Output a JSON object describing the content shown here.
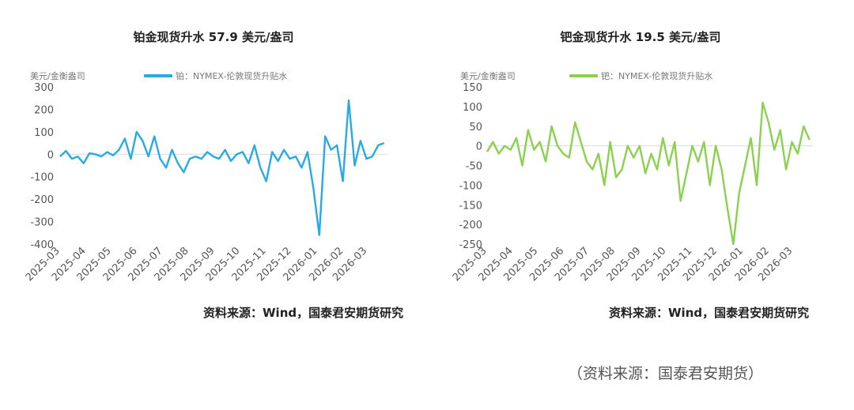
{
  "footer": "（资料来源：国泰君安期货）",
  "chart_data": [
    {
      "type": "line",
      "title": "铂金现货升水 57.9 美元/盎司",
      "ylabel": "美元/金衡盎司",
      "source": "资料来源：Wind，国泰君安期货研究",
      "ylim": [
        -400,
        300
      ],
      "yticks": [
        300,
        200,
        100,
        0,
        -100,
        -200,
        -300,
        -400
      ],
      "xticks": [
        "2025-03",
        "2025-04",
        "2025-05",
        "2025-06",
        "2025-07",
        "2025-08",
        "2025-09",
        "2025-10",
        "2025-11",
        "2025-12",
        "2026-01",
        "2026-02",
        "2026-03"
      ],
      "color": "#29abe2",
      "series": [
        {
          "name": "铂：NYMEX-伦敦现货升贴水",
          "x": [
            "2025-03-01",
            "2025-03-08",
            "2025-03-15",
            "2025-03-22",
            "2025-03-29",
            "2025-04-05",
            "2025-04-12",
            "2025-04-19",
            "2025-04-26",
            "2025-05-03",
            "2025-05-10",
            "2025-05-17",
            "2025-05-24",
            "2025-05-31",
            "2025-06-07",
            "2025-06-14",
            "2025-06-21",
            "2025-06-28",
            "2025-07-05",
            "2025-07-12",
            "2025-07-19",
            "2025-07-26",
            "2025-08-02",
            "2025-08-09",
            "2025-08-16",
            "2025-08-23",
            "2025-08-30",
            "2025-09-06",
            "2025-09-13",
            "2025-09-20",
            "2025-09-27",
            "2025-10-04",
            "2025-10-11",
            "2025-10-18",
            "2025-10-25",
            "2025-11-01",
            "2025-11-08",
            "2025-11-15",
            "2025-11-22",
            "2025-11-29",
            "2025-12-06",
            "2025-12-13",
            "2025-12-20",
            "2025-12-27",
            "2026-01-03",
            "2026-01-10",
            "2026-01-17",
            "2026-01-24",
            "2026-01-31",
            "2026-02-07",
            "2026-02-14",
            "2026-02-21",
            "2026-02-28",
            "2026-03-07",
            "2026-03-14",
            "2026-03-21"
          ],
          "values": [
            -10,
            15,
            -20,
            -10,
            -40,
            5,
            0,
            -10,
            10,
            -5,
            20,
            70,
            -20,
            100,
            60,
            -10,
            80,
            -20,
            -60,
            20,
            -40,
            -80,
            -20,
            -10,
            -20,
            10,
            -10,
            -20,
            20,
            -30,
            0,
            10,
            -40,
            40,
            -60,
            -120,
            10,
            -30,
            20,
            -20,
            -10,
            -60,
            10,
            -150,
            -360,
            80,
            20,
            40,
            -120,
            240,
            -50,
            60,
            -20,
            -10,
            40,
            50
          ]
        }
      ]
    },
    {
      "type": "line",
      "title": "钯金现货升水 19.5 美元/盎司",
      "ylabel": "美元/金衡盎司",
      "source": "资料来源：Wind，国泰君安期货研究",
      "ylim": [
        -250,
        150
      ],
      "yticks": [
        150,
        100,
        50,
        0,
        -50,
        -100,
        -150,
        -200,
        -250
      ],
      "xticks": [
        "2025-03",
        "2025-04",
        "2025-05",
        "2025-06",
        "2025-07",
        "2025-08",
        "2025-09",
        "2025-10",
        "2025-11",
        "2025-12",
        "2026-01",
        "2026-02",
        "2026-03"
      ],
      "color": "#8cd04f",
      "series": [
        {
          "name": "钯：NYMEX-伦敦现货升贴水",
          "x": [
            "2025-03-01",
            "2025-03-08",
            "2025-03-15",
            "2025-03-22",
            "2025-03-29",
            "2025-04-05",
            "2025-04-12",
            "2025-04-19",
            "2025-04-26",
            "2025-05-03",
            "2025-05-10",
            "2025-05-17",
            "2025-05-24",
            "2025-05-31",
            "2025-06-07",
            "2025-06-14",
            "2025-06-21",
            "2025-06-28",
            "2025-07-05",
            "2025-07-12",
            "2025-07-19",
            "2025-07-26",
            "2025-08-02",
            "2025-08-09",
            "2025-08-16",
            "2025-08-23",
            "2025-08-30",
            "2025-09-06",
            "2025-09-13",
            "2025-09-20",
            "2025-09-27",
            "2025-10-04",
            "2025-10-11",
            "2025-10-18",
            "2025-10-25",
            "2025-11-01",
            "2025-11-08",
            "2025-11-15",
            "2025-11-22",
            "2025-11-29",
            "2025-12-06",
            "2025-12-13",
            "2025-12-20",
            "2025-12-27",
            "2026-01-03",
            "2026-01-10",
            "2026-01-17",
            "2026-01-24",
            "2026-01-31",
            "2026-02-07",
            "2026-02-14",
            "2026-02-21",
            "2026-02-28",
            "2026-03-07",
            "2026-03-14",
            "2026-03-21"
          ],
          "values": [
            -15,
            10,
            -20,
            0,
            -10,
            20,
            -50,
            40,
            -10,
            10,
            -40,
            50,
            0,
            -20,
            -30,
            60,
            10,
            -40,
            -60,
            -20,
            -100,
            10,
            -80,
            -60,
            0,
            -30,
            0,
            -70,
            -20,
            -60,
            20,
            -50,
            10,
            -140,
            -70,
            0,
            -40,
            10,
            -100,
            0,
            -60,
            -160,
            -250,
            -120,
            -50,
            20,
            -100,
            110,
            60,
            -10,
            40,
            -60,
            10,
            -20,
            50,
            15
          ]
        }
      ]
    }
  ]
}
